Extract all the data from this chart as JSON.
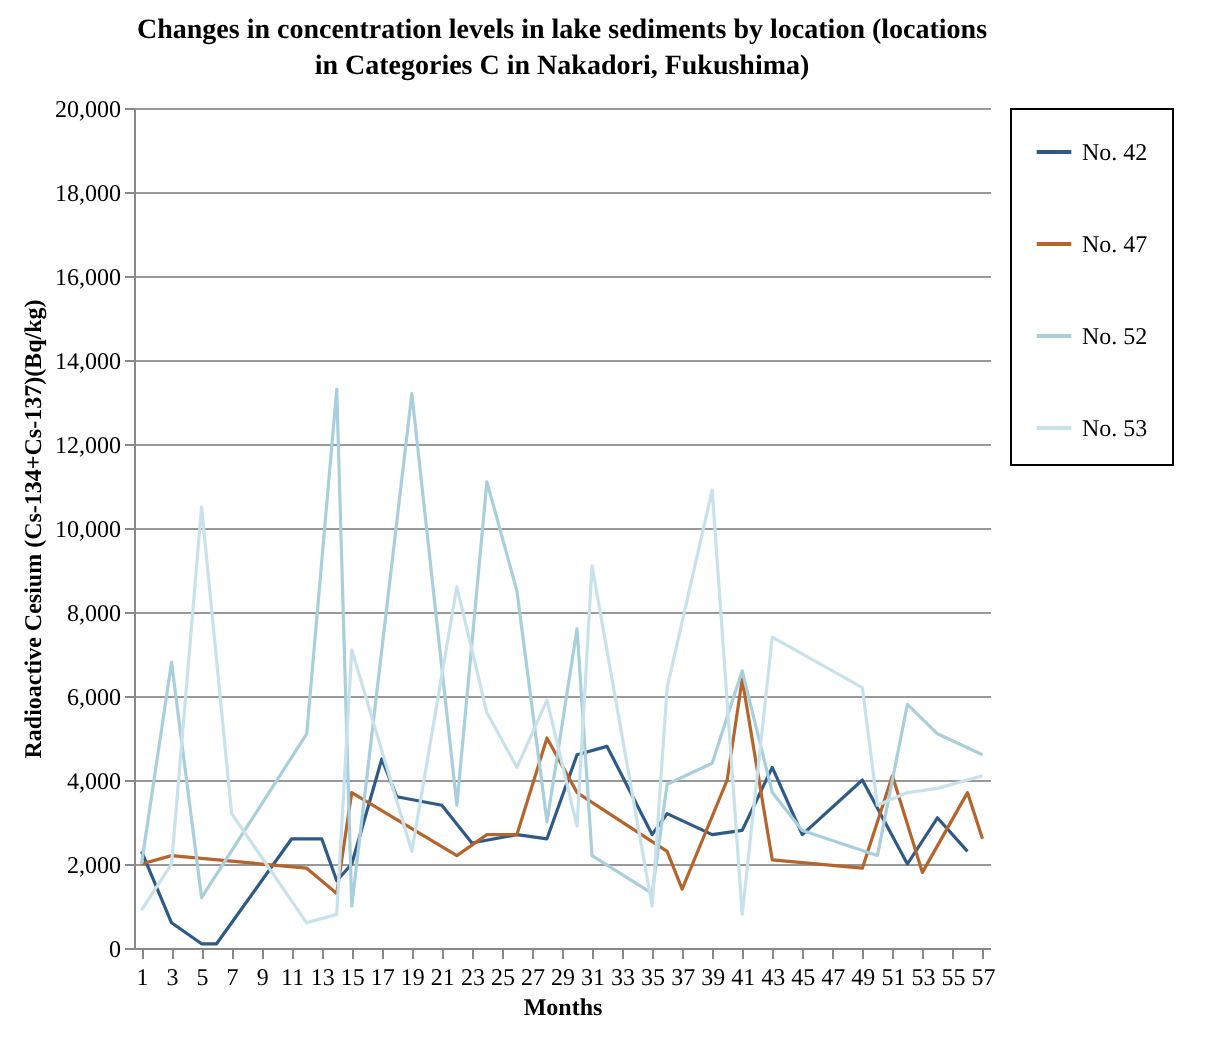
{
  "chart_data": {
    "type": "line",
    "title": "Changes in concentration levels in lake sediments by location (locations in Categories C in Nakadori, Fukushima)",
    "xlabel": "Months",
    "ylabel": "Radioactive Cesium (Cs-134+Cs-137)(Bq/kg)",
    "xlim": [
      0.5,
      57.5
    ],
    "xticks": [
      1,
      3,
      5,
      7,
      9,
      11,
      13,
      15,
      17,
      19,
      21,
      23,
      25,
      27,
      29,
      31,
      33,
      35,
      37,
      39,
      41,
      43,
      45,
      47,
      49,
      51,
      53,
      55,
      57
    ],
    "ylim": [
      0,
      20000
    ],
    "yticks": [
      {
        "value": 0,
        "label": "0"
      },
      {
        "value": 2000,
        "label": "2,000"
      },
      {
        "value": 4000,
        "label": "4,000"
      },
      {
        "value": 6000,
        "label": "6,000"
      },
      {
        "value": 8000,
        "label": "8,000"
      },
      {
        "value": 10000,
        "label": "10,000"
      },
      {
        "value": 12000,
        "label": "12,000"
      },
      {
        "value": 14000,
        "label": "14,000"
      },
      {
        "value": 16000,
        "label": "16,000"
      },
      {
        "value": 18000,
        "label": "18,000"
      },
      {
        "value": 20000,
        "label": "20,000"
      }
    ],
    "grid": "y",
    "legend": "right",
    "line_style": "solid",
    "series": [
      {
        "name": "No. 42",
        "color": "#2e5a87",
        "x": [
          1,
          3,
          5,
          6,
          11,
          13,
          14,
          15,
          17,
          18,
          21,
          23,
          26,
          28,
          30,
          32,
          35,
          36,
          39,
          41,
          43,
          45,
          49,
          52,
          54,
          56
        ],
        "values": [
          2300,
          600,
          100,
          100,
          2600,
          2600,
          1600,
          2000,
          4500,
          3600,
          3400,
          2500,
          2700,
          2600,
          4600,
          4800,
          2700,
          3200,
          2700,
          2800,
          4300,
          2700,
          4000,
          2000,
          3100,
          2300
        ]
      },
      {
        "name": "No. 47",
        "color": "#b5652b",
        "x": [
          1,
          3,
          12,
          14,
          15,
          22,
          24,
          26,
          28,
          30,
          36,
          37,
          40,
          41,
          43,
          49,
          51,
          53,
          56,
          57
        ],
        "values": [
          2000,
          2200,
          1900,
          1300,
          3700,
          2200,
          2700,
          2700,
          5000,
          3700,
          2300,
          1400,
          4000,
          6400,
          2100,
          1900,
          4100,
          1800,
          3700,
          2600
        ]
      },
      {
        "name": "No. 52",
        "color": "#a9cfdc",
        "x": [
          1,
          3,
          5,
          12,
          14,
          15,
          19,
          22,
          24,
          26,
          28,
          30,
          31,
          35,
          36,
          39,
          41,
          43,
          45,
          50,
          52,
          54,
          57
        ],
        "values": [
          2000,
          6800,
          1200,
          5100,
          13300,
          1000,
          13200,
          3400,
          11100,
          8500,
          3000,
          7600,
          2200,
          1300,
          3900,
          4400,
          6600,
          3700,
          2800,
          2200,
          5800,
          5100,
          4600
        ]
      },
      {
        "name": "No. 53",
        "color": "#c8e2eb",
        "x": [
          1,
          3,
          5,
          7,
          12,
          14,
          15,
          19,
          22,
          24,
          26,
          28,
          30,
          31,
          35,
          36,
          39,
          41,
          43,
          49,
          50,
          52,
          54,
          57
        ],
        "values": [
          900,
          2000,
          10500,
          3200,
          600,
          800,
          7100,
          2300,
          8600,
          5600,
          4300,
          5900,
          2900,
          9100,
          1000,
          6200,
          10900,
          800,
          7400,
          6200,
          3400,
          3700,
          3800,
          4100
        ]
      }
    ]
  }
}
